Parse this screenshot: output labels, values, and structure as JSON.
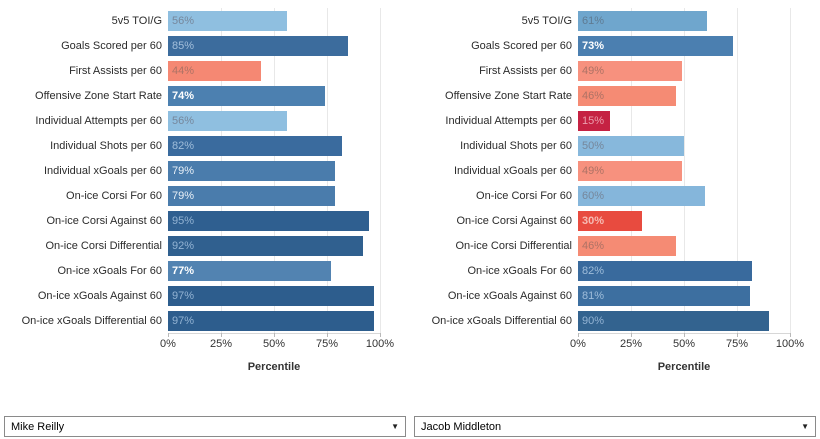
{
  "chart_data": [
    {
      "type": "bar",
      "orientation": "horizontal",
      "player": "Mike Reilly",
      "xlabel": "Percentile",
      "xlim": [
        0,
        100
      ],
      "x_ticks": [
        "0%",
        "25%",
        "50%",
        "75%",
        "100%"
      ],
      "grid": true,
      "legend": "none",
      "categories": [
        "5v5 TOI/G",
        "Goals Scored per 60",
        "First Assists per 60",
        "Offensive Zone Start Rate",
        "Individual Attempts per 60",
        "Individual Shots per 60",
        "Individual xGoals per 60",
        "On-ice Corsi For 60",
        "On-ice Corsi Against 60",
        "On-ice Corsi Differential",
        "On-ice xGoals For 60",
        "On-ice xGoals Against 60",
        "On-ice xGoals Differential 60"
      ],
      "values": [
        56,
        85,
        44,
        74,
        56,
        82,
        79,
        79,
        95,
        92,
        77,
        97,
        97
      ],
      "bars": [
        {
          "value": 56,
          "label": "56%",
          "color": "#8FBFE0",
          "label_color": "#76879B",
          "bold": false
        },
        {
          "value": 85,
          "label": "85%",
          "color": "#3C6C9D",
          "label_color": "#A3BFDB",
          "bold": false
        },
        {
          "value": 44,
          "label": "44%",
          "color": "#F58873",
          "label_color": "#AD7265",
          "bold": false
        },
        {
          "value": 74,
          "label": "74%",
          "color": "#4C80B0",
          "label_color": "#FFFFFF",
          "bold": true
        },
        {
          "value": 56,
          "label": "56%",
          "color": "#8FBFE0",
          "label_color": "#76879B",
          "bold": false
        },
        {
          "value": 82,
          "label": "82%",
          "color": "#3A6B9E",
          "label_color": "#9FBDDA",
          "bold": false
        },
        {
          "value": 79,
          "label": "79%",
          "color": "#4A7CAC",
          "label_color": "#E9F0F7",
          "bold": false
        },
        {
          "value": 79,
          "label": "79%",
          "color": "#4A7CAC",
          "label_color": "#E9F0F7",
          "bold": false
        },
        {
          "value": 95,
          "label": "95%",
          "color": "#2F5F90",
          "label_color": "#93B3D3",
          "bold": false
        },
        {
          "value": 92,
          "label": "92%",
          "color": "#30608F",
          "label_color": "#93B3D3",
          "bold": false
        },
        {
          "value": 77,
          "label": "77%",
          "color": "#5283B1",
          "label_color": "#FFFFFF",
          "bold": true
        },
        {
          "value": 97,
          "label": "97%",
          "color": "#2D5D8D",
          "label_color": "#93B3D3",
          "bold": false
        },
        {
          "value": 97,
          "label": "97%",
          "color": "#2D5D8D",
          "label_color": "#93B3D3",
          "bold": false
        }
      ]
    },
    {
      "type": "bar",
      "orientation": "horizontal",
      "player": "Jacob Middleton",
      "xlabel": "Percentile",
      "xlim": [
        0,
        100
      ],
      "x_ticks": [
        "0%",
        "25%",
        "50%",
        "75%",
        "100%"
      ],
      "grid": true,
      "legend": "none",
      "categories": [
        "5v5 TOI/G",
        "Goals Scored per 60",
        "First Assists per 60",
        "Offensive Zone Start Rate",
        "Individual Attempts per 60",
        "Individual Shots per 60",
        "Individual xGoals per 60",
        "On-ice Corsi For 60",
        "On-ice Corsi Against 60",
        "On-ice Corsi Differential",
        "On-ice xGoals For 60",
        "On-ice xGoals Against 60",
        "On-ice xGoals Differential 60"
      ],
      "values": [
        61,
        73,
        49,
        46,
        15,
        50,
        49,
        60,
        30,
        46,
        82,
        81,
        90
      ],
      "bars": [
        {
          "value": 61,
          "label": "61%",
          "color": "#6FA6CD",
          "label_color": "#5F7B92",
          "bold": false
        },
        {
          "value": 73,
          "label": "73%",
          "color": "#4B7FB0",
          "label_color": "#FFFFFF",
          "bold": true
        },
        {
          "value": 49,
          "label": "49%",
          "color": "#F7917E",
          "label_color": "#AD7265",
          "bold": false
        },
        {
          "value": 46,
          "label": "46%",
          "color": "#F58B74",
          "label_color": "#AD7265",
          "bold": false
        },
        {
          "value": 15,
          "label": "15%",
          "color": "#C52243",
          "label_color": "#EC9FAE",
          "bold": false
        },
        {
          "value": 50,
          "label": "50%",
          "color": "#87B8DC",
          "label_color": "#76879B",
          "bold": false
        },
        {
          "value": 49,
          "label": "49%",
          "color": "#F7917E",
          "label_color": "#AD7265",
          "bold": false
        },
        {
          "value": 60,
          "label": "60%",
          "color": "#85B6DB",
          "label_color": "#76879B",
          "bold": false
        },
        {
          "value": 30,
          "label": "30%",
          "color": "#E84B3F",
          "label_color": "#F6BCB4",
          "bold": true
        },
        {
          "value": 46,
          "label": "46%",
          "color": "#F58B74",
          "label_color": "#AD7265",
          "bold": false
        },
        {
          "value": 82,
          "label": "82%",
          "color": "#396A9D",
          "label_color": "#9FBDDA",
          "bold": false
        },
        {
          "value": 81,
          "label": "81%",
          "color": "#3D6FA0",
          "label_color": "#9FBDDA",
          "bold": false
        },
        {
          "value": 90,
          "label": "90%",
          "color": "#33638F",
          "label_color": "#93B3D3",
          "bold": false
        }
      ]
    }
  ],
  "colors": {
    "background": "#ffffff",
    "gridline": "#e8e8e8",
    "axis_line": "#d7d7d7",
    "tick": "#b9b9b9",
    "category_text": "#2b2b2b",
    "axis_text": "#333333",
    "high_percentile_blue": "#2D5D8D",
    "mid_percentile_blue": "#8FBFE0",
    "low_percentile_salmon": "#F58873",
    "lowest_percentile_red": "#C52243"
  },
  "dropdowns": [
    {
      "value": "Mike Reilly"
    },
    {
      "value": "Jacob Middleton"
    }
  ]
}
